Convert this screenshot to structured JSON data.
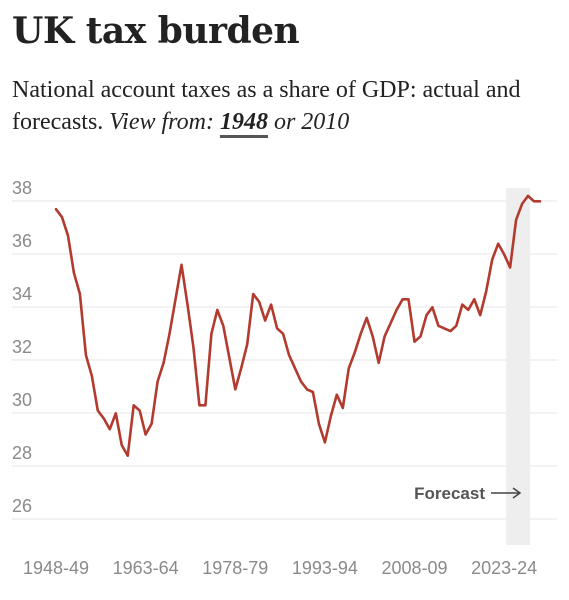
{
  "title": "UK tax burden",
  "subtitle": {
    "text": "National account taxes as a share of GDP: actual and forecasts.",
    "view_from_label": "View from:",
    "options": [
      "1948",
      "2010"
    ],
    "selected": "1948",
    "or_word": "or"
  },
  "colors": {
    "line": "#b23a2e",
    "grid": "#e6e6e6",
    "forecast_band": "#eeeeee",
    "text": "#222222",
    "tick": "#8a8a8a"
  },
  "chart_data": {
    "type": "line",
    "x_start_year": 1948,
    "x_end_year": 2028,
    "x_tick_labels": [
      "1948-49",
      "1963-64",
      "1978-79",
      "1993-94",
      "2008-09",
      "2023-24"
    ],
    "x_tick_years": [
      1948,
      1963,
      1978,
      1993,
      2008,
      2023
    ],
    "y_ticks": [
      26,
      28,
      30,
      32,
      34,
      36,
      38
    ],
    "ylim": [
      25.5,
      38.5
    ],
    "grid": true,
    "forecast_label": "Forecast",
    "forecast_start_year": 2024,
    "series": [
      {
        "values": [
          37.2,
          36.9,
          36.2,
          34.8,
          34.0,
          31.7,
          30.9,
          29.6,
          29.3,
          28.9,
          29.5,
          28.3,
          27.9,
          29.8,
          29.6,
          28.7,
          29.1,
          30.7,
          31.4,
          32.5,
          33.8,
          35.1,
          33.6,
          32.0,
          29.8,
          29.8,
          32.5,
          33.4,
          32.8,
          31.6,
          30.4,
          31.2,
          32.1,
          34.0,
          33.7,
          33.0,
          33.6,
          32.7,
          32.5,
          31.7,
          31.2,
          30.7,
          30.4,
          30.3,
          29.1,
          28.4,
          29.4,
          30.2,
          29.7,
          31.2,
          31.8,
          32.5,
          33.1,
          32.4,
          31.4,
          32.4,
          32.9,
          33.4,
          33.8,
          33.8,
          32.2,
          32.4,
          33.2,
          33.5,
          32.8,
          32.7,
          32.6,
          32.8,
          33.6,
          33.4,
          33.8,
          33.2,
          34.1,
          35.3,
          35.9,
          35.5,
          35.0,
          36.8,
          37.4,
          37.7,
          37.5,
          37.5
        ]
      }
    ]
  }
}
